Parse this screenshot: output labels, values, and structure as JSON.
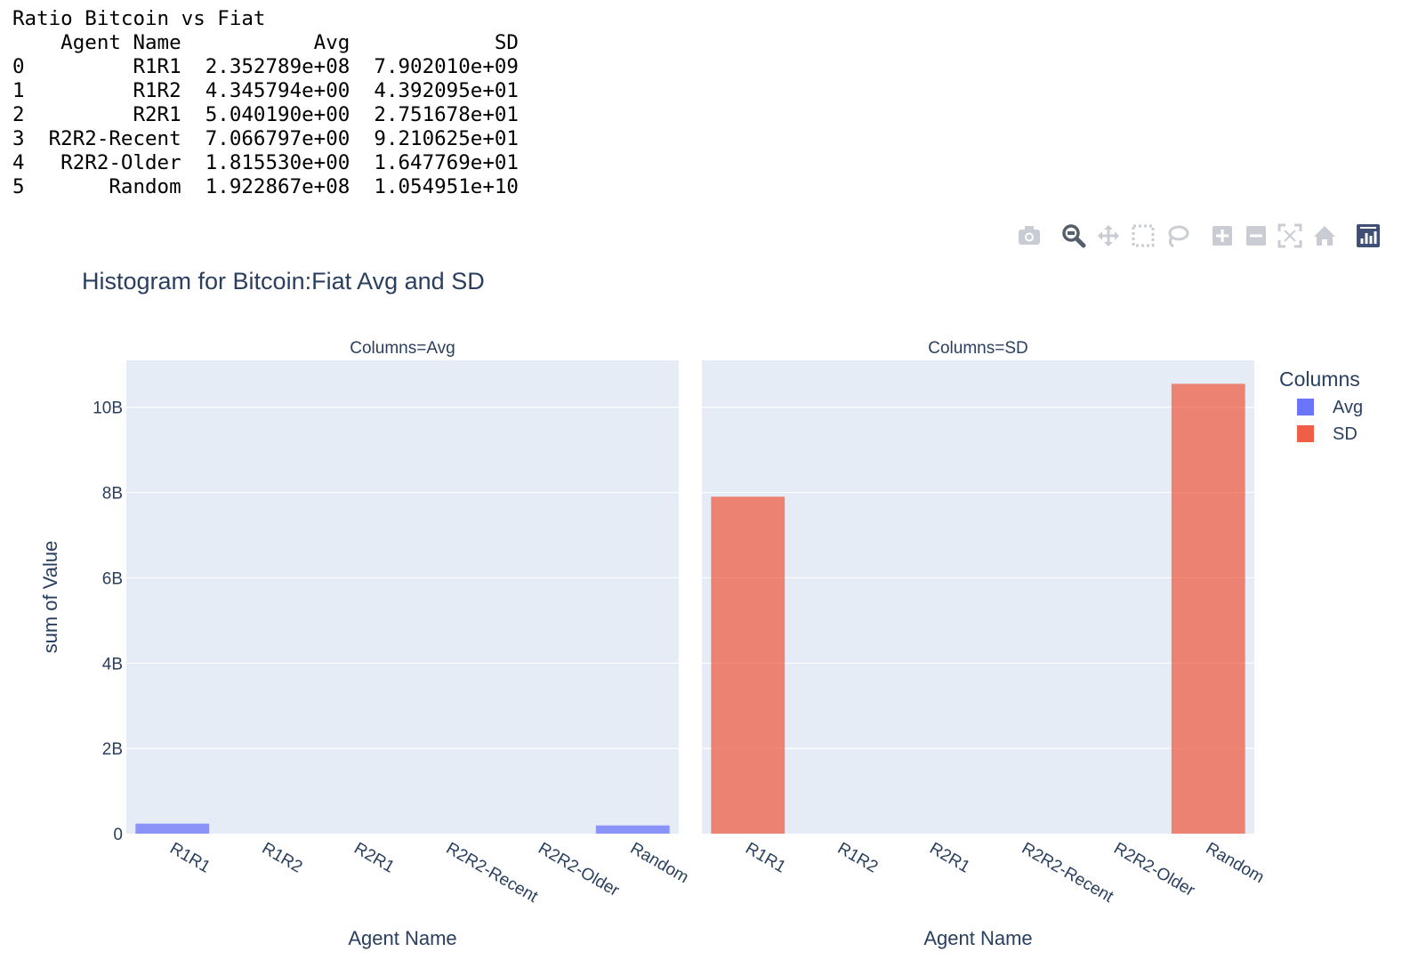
{
  "table": {
    "title": "Ratio Bitcoin vs Fiat",
    "columns": [
      "Agent Name",
      "Avg",
      "SD"
    ],
    "rows": [
      {
        "index": "0",
        "agent": "R1R1",
        "avg": "2.352789e+08",
        "sd": "7.902010e+09"
      },
      {
        "index": "1",
        "agent": "R1R2",
        "avg": "4.345794e+00",
        "sd": "4.392095e+01"
      },
      {
        "index": "2",
        "agent": "R2R1",
        "avg": "5.040190e+00",
        "sd": "2.751678e+01"
      },
      {
        "index": "3",
        "agent": "R2R2-Recent",
        "avg": "7.066797e+00",
        "sd": "9.210625e+01"
      },
      {
        "index": "4",
        "agent": "R2R2-Older",
        "avg": "1.815530e+00",
        "sd": "1.647769e+01"
      },
      {
        "index": "5",
        "agent": "Random",
        "avg": "1.922867e+08",
        "sd": "1.054951e+10"
      }
    ]
  },
  "toolbar": {
    "icons": [
      "camera-icon",
      "zoom-icon",
      "pan-icon",
      "box-select-icon",
      "lasso-select-icon",
      "zoom-in-icon",
      "zoom-out-icon",
      "autoscale-icon",
      "reset-axes-icon",
      "plotly-logo-icon"
    ],
    "active": "zoom-icon"
  },
  "chart_data": {
    "type": "bar",
    "title": "Histogram for Bitcoin:Fiat Avg and SD",
    "xlabel": "Agent Name",
    "ylabel": "sum of Value",
    "categories": [
      "R1R1",
      "R1R2",
      "R2R1",
      "R2R2-Recent",
      "R2R2-Older",
      "Random"
    ],
    "ylim": [
      0,
      11100000000
    ],
    "yticks": [
      0,
      2000000000,
      4000000000,
      6000000000,
      8000000000,
      10000000000
    ],
    "ytick_labels": [
      "0",
      "2B",
      "4B",
      "6B",
      "8B",
      "10B"
    ],
    "grid": true,
    "facets": [
      {
        "label": "Columns=Avg",
        "series": "Avg"
      },
      {
        "label": "Columns=SD",
        "series": "SD"
      }
    ],
    "series": [
      {
        "name": "Avg",
        "color": "#636efa",
        "values": [
          235278900,
          4.345794,
          5.04019,
          7.066797,
          1.81553,
          192286700
        ]
      },
      {
        "name": "SD",
        "color": "#ef553b",
        "values": [
          7902010000,
          43.92095,
          27.51678,
          92.10625,
          16.47769,
          10549510000
        ]
      }
    ],
    "legend": {
      "title": "Columns",
      "position": "top-right",
      "items": [
        "Avg",
        "SD"
      ]
    },
    "colors": {
      "plot_bg": "#e5ecf6",
      "grid": "#ffffff",
      "text": "#2a3f5f"
    }
  }
}
